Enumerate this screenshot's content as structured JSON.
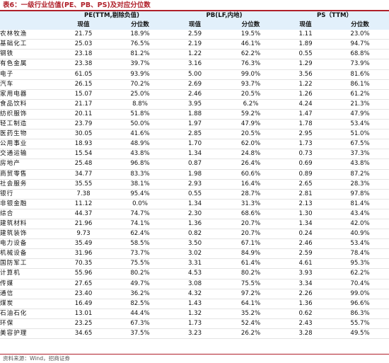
{
  "caption": "表6：一级行业估值(PE、PB、PS)及对应分位数",
  "group_headers": [
    "PE(TTM,剔除负值)",
    "PB(LF,内地)",
    "PS（TTM）"
  ],
  "sub_headers": [
    "现值",
    "分位数",
    "现值",
    "分位数",
    "现值",
    "分位数"
  ],
  "rows": [
    [
      "农林牧渔",
      "21.75",
      "18.9%",
      "2.59",
      "19.5%",
      "1.11",
      "23.0%"
    ],
    [
      "基础化工",
      "25.03",
      "76.5%",
      "2.19",
      "46.1%",
      "1.89",
      "94.7%"
    ],
    [
      "钢铁",
      "23.18",
      "81.2%",
      "1.22",
      "62.2%",
      "0.55",
      "68.8%"
    ],
    [
      "有色金属",
      "23.38",
      "39.7%",
      "3.16",
      "76.3%",
      "1.29",
      "73.9%"
    ],
    [
      "电子",
      "61.05",
      "93.9%",
      "5.00",
      "99.0%",
      "3.56",
      "81.6%"
    ],
    [
      "汽车",
      "26.15",
      "70.2%",
      "2.69",
      "93.7%",
      "1.22",
      "86.1%"
    ],
    [
      "家用电器",
      "15.07",
      "25.0%",
      "2.46",
      "20.5%",
      "1.26",
      "61.2%"
    ],
    [
      "食品饮料",
      "21.17",
      "8.8%",
      "3.95",
      "6.2%",
      "4.24",
      "21.3%"
    ],
    [
      "纺织服饰",
      "20.11",
      "51.8%",
      "1.88",
      "59.2%",
      "1.47",
      "47.9%"
    ],
    [
      "轻工制造",
      "23.79",
      "50.0%",
      "1.97",
      "47.9%",
      "1.78",
      "53.4%"
    ],
    [
      "医药生物",
      "30.05",
      "41.6%",
      "2.85",
      "20.5%",
      "2.95",
      "51.0%"
    ],
    [
      "公用事业",
      "18.93",
      "48.9%",
      "1.70",
      "62.0%",
      "1.73",
      "67.5%"
    ],
    [
      "交通运输",
      "15.54",
      "43.8%",
      "1.34",
      "24.8%",
      "0.73",
      "37.3%"
    ],
    [
      "房地产",
      "25.48",
      "96.8%",
      "0.87",
      "26.4%",
      "0.69",
      "43.8%"
    ],
    [
      "商贸零售",
      "34.77",
      "83.3%",
      "1.98",
      "60.6%",
      "0.89",
      "87.2%"
    ],
    [
      "社会服务",
      "35.55",
      "38.1%",
      "2.93",
      "16.4%",
      "2.65",
      "28.3%"
    ],
    [
      "银行",
      "7.38",
      "95.4%",
      "0.55",
      "28.7%",
      "2.81",
      "97.8%"
    ],
    [
      "非银金融",
      "11.12",
      "0.0%",
      "1.34",
      "31.3%",
      "2.13",
      "81.4%"
    ],
    [
      "综合",
      "44.37",
      "74.7%",
      "2.30",
      "68.6%",
      "1.30",
      "43.4%"
    ],
    [
      "建筑材料",
      "21.96",
      "74.1%",
      "1.36",
      "20.7%",
      "1.34",
      "42.0%"
    ],
    [
      "建筑装饰",
      "9.73",
      "62.4%",
      "0.82",
      "20.7%",
      "0.24",
      "40.9%"
    ],
    [
      "电力设备",
      "35.49",
      "58.5%",
      "3.50",
      "67.1%",
      "2.46",
      "53.4%"
    ],
    [
      "机械设备",
      "31.96",
      "73.7%",
      "3.02",
      "84.9%",
      "2.59",
      "78.4%"
    ],
    [
      "国防军工",
      "70.35",
      "75.5%",
      "3.31",
      "61.4%",
      "4.61",
      "95.3%"
    ],
    [
      "计算机",
      "55.96",
      "80.2%",
      "4.53",
      "80.2%",
      "3.93",
      "62.2%"
    ],
    [
      "传媒",
      "27.65",
      "49.7%",
      "3.08",
      "75.5%",
      "3.34",
      "70.4%"
    ],
    [
      "通信",
      "23.40",
      "36.2%",
      "4.32",
      "97.2%",
      "2.26",
      "99.0%"
    ],
    [
      "煤炭",
      "16.49",
      "82.5%",
      "1.43",
      "64.1%",
      "1.36",
      "96.6%"
    ],
    [
      "石油石化",
      "13.01",
      "44.4%",
      "1.32",
      "35.2%",
      "0.62",
      "86.3%"
    ],
    [
      "环保",
      "23.25",
      "67.3%",
      "1.73",
      "52.4%",
      "2.43",
      "55.7%"
    ],
    [
      "美容护理",
      "34.65",
      "37.5%",
      "3.23",
      "26.2%",
      "3.28",
      "49.5%"
    ]
  ],
  "source": "资料来源：Wind，招商证券"
}
